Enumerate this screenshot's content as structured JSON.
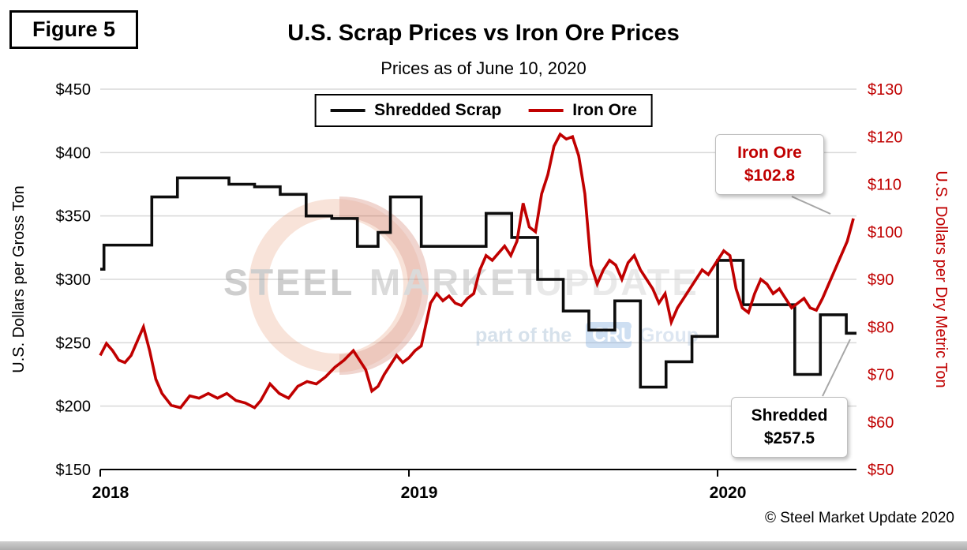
{
  "figure_label": "Figure 5",
  "title": "U.S. Scrap Prices vs Iron Ore Prices",
  "subtitle": "Prices as of June 10, 2020",
  "copyright": "© Steel Market Update 2020",
  "watermark": {
    "word1": "STEEL",
    "word2": "MARKET",
    "word3": "UPDATE",
    "tagline_prefix": "part of the",
    "tagline_brand": "CRU",
    "tagline_suffix": "Group"
  },
  "chart_data": {
    "type": "line",
    "x_range": [
      2018.0,
      2020.45
    ],
    "x_tick_years": [
      2018,
      2019,
      2020
    ],
    "grid": true,
    "legend_position": "top-center",
    "left_axis": {
      "label": "U.S. Dollars per Gross Ton",
      "min": 150,
      "max": 450,
      "step": 50,
      "tick_prefix": "$",
      "color": "#000000"
    },
    "right_axis": {
      "label": "U.S. Dollars per Dry Metric Ton",
      "min": 50,
      "max": 130,
      "step": 10,
      "tick_prefix": "$",
      "color": "#C00000"
    },
    "series": [
      {
        "name": "Shredded Scrap",
        "axis": "left",
        "style": "step",
        "color": "#0D0D0D",
        "x": [
          2018.0,
          2018.012,
          2018.083,
          2018.167,
          2018.25,
          2018.333,
          2018.417,
          2018.5,
          2018.583,
          2018.667,
          2018.75,
          2018.833,
          2018.9,
          2018.94,
          2019.04,
          2019.167,
          2019.25,
          2019.333,
          2019.417,
          2019.5,
          2019.583,
          2019.667,
          2019.75,
          2019.833,
          2019.917,
          2020.0,
          2020.083,
          2020.167,
          2020.25,
          2020.333,
          2020.417
        ],
        "values": [
          308,
          327,
          327,
          365,
          380,
          380,
          375,
          373,
          367,
          350,
          348,
          326,
          337,
          365,
          326,
          326,
          352,
          333,
          300,
          275,
          260,
          283,
          215,
          235,
          255,
          315,
          280,
          280,
          225,
          272,
          257.5
        ]
      },
      {
        "name": "Iron Ore",
        "axis": "right",
        "style": "linear",
        "color": "#C00000",
        "x": [
          2018.0,
          2018.02,
          2018.04,
          2018.06,
          2018.08,
          2018.1,
          2018.12,
          2018.14,
          2018.16,
          2018.18,
          2018.2,
          2018.23,
          2018.26,
          2018.29,
          2018.32,
          2018.35,
          2018.38,
          2018.41,
          2018.44,
          2018.47,
          2018.5,
          2018.52,
          2018.55,
          2018.58,
          2018.61,
          2018.64,
          2018.67,
          2018.7,
          2018.73,
          2018.76,
          2018.79,
          2018.82,
          2018.84,
          2018.86,
          2018.88,
          2018.9,
          2018.92,
          2018.94,
          2018.96,
          2018.98,
          2019.0,
          2019.02,
          2019.04,
          2019.07,
          2019.09,
          2019.11,
          2019.13,
          2019.15,
          2019.17,
          2019.19,
          2019.21,
          2019.23,
          2019.25,
          2019.27,
          2019.29,
          2019.31,
          2019.33,
          2019.35,
          2019.37,
          2019.39,
          2019.41,
          2019.43,
          2019.45,
          2019.47,
          2019.49,
          2019.51,
          2019.53,
          2019.55,
          2019.57,
          2019.59,
          2019.61,
          2019.63,
          2019.65,
          2019.67,
          2019.69,
          2019.71,
          2019.73,
          2019.75,
          2019.77,
          2019.79,
          2019.81,
          2019.83,
          2019.85,
          2019.87,
          2019.89,
          2019.91,
          2019.93,
          2019.95,
          2019.97,
          2020.0,
          2020.02,
          2020.04,
          2020.06,
          2020.08,
          2020.1,
          2020.12,
          2020.14,
          2020.16,
          2020.18,
          2020.2,
          2020.22,
          2020.24,
          2020.26,
          2020.28,
          2020.3,
          2020.32,
          2020.34,
          2020.36,
          2020.38,
          2020.4,
          2020.42,
          2020.44
        ],
        "values": [
          74,
          76.5,
          75,
          73,
          72.5,
          74,
          77,
          80,
          75,
          69,
          66,
          63.5,
          63,
          65.5,
          65,
          66,
          65,
          66,
          64.5,
          64,
          63,
          64.5,
          68,
          66,
          65,
          67.5,
          68.5,
          68,
          69.5,
          71.5,
          73,
          75,
          73,
          71,
          66.5,
          67.5,
          70,
          72,
          74,
          72.5,
          73.5,
          75,
          76,
          85,
          87,
          85.5,
          86.5,
          85,
          84.5,
          86,
          87,
          92,
          95,
          94,
          95.5,
          97,
          95,
          98,
          106,
          101,
          100,
          108,
          112,
          118,
          120.5,
          119.5,
          120,
          116,
          108,
          93,
          89,
          92,
          94,
          93,
          90,
          93.5,
          95,
          92,
          90,
          88,
          85,
          87,
          81,
          84,
          86,
          88,
          90,
          92,
          91,
          94,
          96,
          95,
          88,
          84,
          83,
          87,
          90,
          89,
          87,
          88,
          86,
          84,
          85,
          86,
          84,
          83.5,
          86,
          89,
          92,
          95,
          98,
          102.8
        ]
      }
    ],
    "annotations": [
      {
        "line1": "Iron Ore",
        "line2": "$102.8",
        "color": "#C00000",
        "target_series": "Iron Ore"
      },
      {
        "line1": "Shredded",
        "line2": "$257.5",
        "color": "#000000",
        "target_series": "Shredded Scrap"
      }
    ]
  }
}
